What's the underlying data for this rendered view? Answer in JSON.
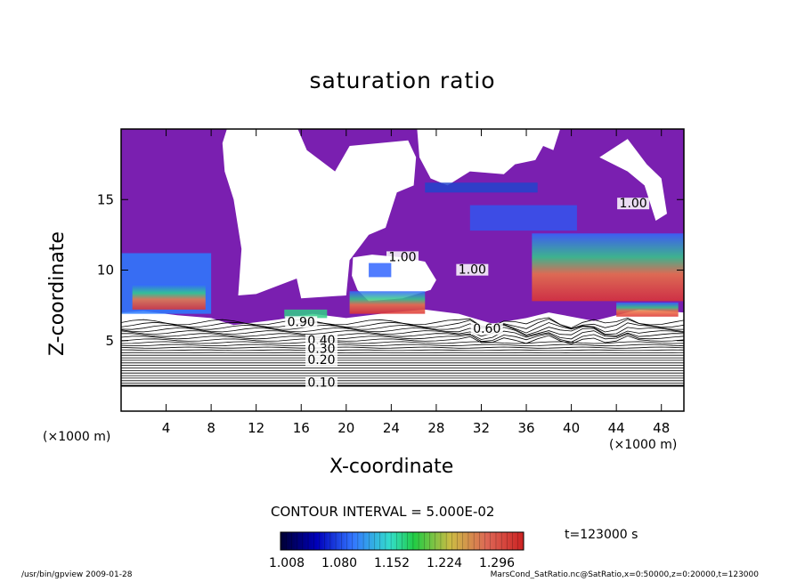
{
  "chart_data": {
    "type": "heatmap",
    "title": "saturation ratio",
    "xlabel": "X-coordinate",
    "ylabel": "Z-coordinate",
    "x_unit": "(×1000 m)",
    "y_unit": "(×1000 m)",
    "xlim": [
      0,
      50
    ],
    "ylim": [
      0,
      20
    ],
    "x_ticks": [
      4,
      8,
      12,
      16,
      20,
      24,
      28,
      32,
      36,
      40,
      44,
      48
    ],
    "y_ticks": [
      5,
      10,
      15
    ],
    "contour_labels": [
      {
        "text": "1.00",
        "x": 25,
        "y": 10.7
      },
      {
        "text": "1.00",
        "x": 31.2,
        "y": 9.8
      },
      {
        "text": "1.00",
        "x": 45.5,
        "y": 14.5
      },
      {
        "text": "0.90",
        "x": 16,
        "y": 6.1
      },
      {
        "text": "0.60",
        "x": 32.5,
        "y": 5.6
      },
      {
        "text": "0.40",
        "x": 17.8,
        "y": 4.8
      },
      {
        "text": "0.30",
        "x": 17.8,
        "y": 4.2
      },
      {
        "text": "0.20",
        "x": 17.8,
        "y": 3.4
      },
      {
        "text": "0.10",
        "x": 17.8,
        "y": 1.8
      }
    ],
    "contour_interval_label": "CONTOUR INTERVAL = 5.000E-02",
    "colorbar": {
      "tick_labels": [
        "1.008",
        "1.080",
        "1.152",
        "1.224",
        "1.296"
      ],
      "colors": [
        "#000044",
        "#0000cc",
        "#4488ff",
        "#33ddcc",
        "#22cc44",
        "#ddcc33",
        "#dd6644",
        "#cc2222"
      ]
    },
    "time_label": "t=123000 s",
    "supersaturated_fill_color": "#7a1fb0"
  },
  "footer": {
    "left": "/usr/bin/gpview  2009-01-28",
    "right": "MarsCond_SatRatio.nc@SatRatio,x=0:50000,z=0:20000,t=123000"
  }
}
